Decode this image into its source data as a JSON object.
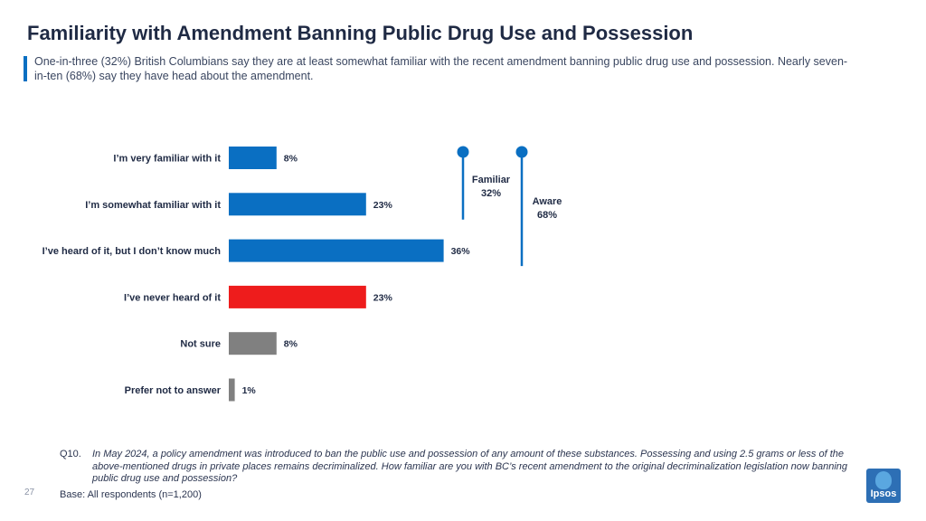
{
  "page": {
    "title": "Familiarity with Amendment Banning Public Drug Use and Possession",
    "subtitle": "One-in-three (32%) British Columbians say they are at least somewhat familiar with the recent amendment banning public drug use and possession. Nearly seven-in-ten (68%) say they have head about the amendment.",
    "question_number": "Q10.",
    "question_text": "In May 2024, a policy amendment was introduced to ban the public use and possession of any amount of these substances. Possessing and using 2.5 grams or less of the above-mentioned drugs in private places remains decriminalized. How familiar are you with BC’s recent amendment to the original decriminalization legislation now banning public drug use and possession?",
    "base": "Base: All respondents (n=1,200)",
    "page_number": "27",
    "logo_text": "Ipsos"
  },
  "chart_data": {
    "type": "bar",
    "orientation": "horizontal",
    "categories": [
      "I’m very familiar with it",
      "I’m somewhat familiar with it",
      "I’ve heard of it, but I don’t know much",
      "I’ve never heard of it",
      "Not sure",
      "Prefer not to answer"
    ],
    "values": [
      8,
      23,
      36,
      23,
      8,
      1
    ],
    "value_labels": [
      "8%",
      "23%",
      "36%",
      "23%",
      "8%",
      "1%"
    ],
    "bar_colors": [
      "#0a6fc2",
      "#0a6fc2",
      "#0a6fc2",
      "#ee1c1c",
      "#808080",
      "#808080"
    ],
    "grid": false,
    "brackets": [
      {
        "label": "Familiar",
        "value_label": "32%",
        "covers": [
          0,
          1
        ]
      },
      {
        "label": "Aware",
        "value_label": "68%",
        "covers": [
          0,
          2
        ]
      }
    ],
    "bracket_color": "#0a6fc2"
  }
}
